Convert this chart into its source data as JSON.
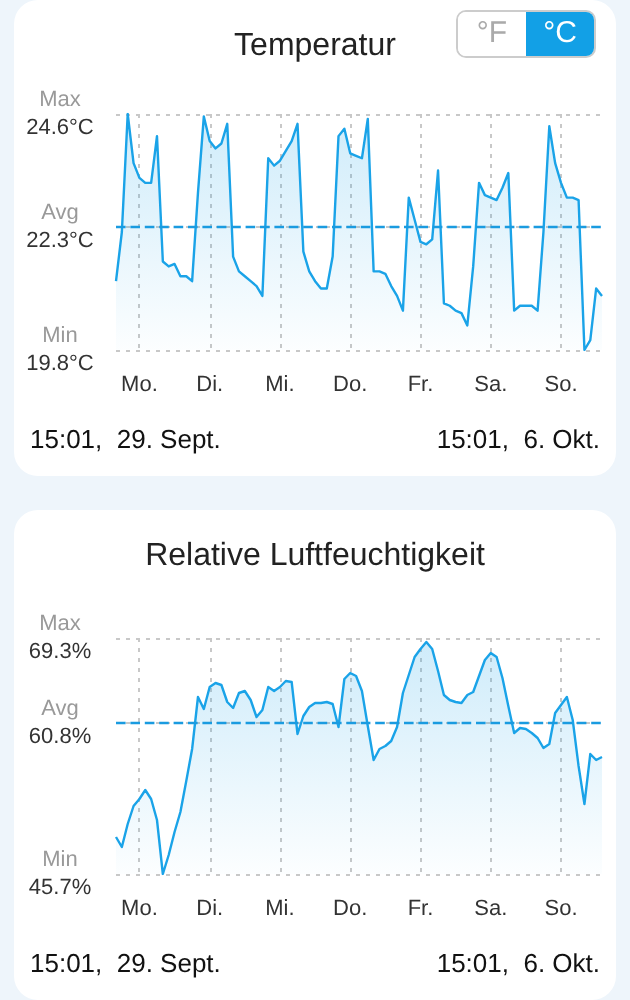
{
  "chart_data": [
    {
      "type": "area",
      "title": "Temperatur",
      "color": "#1aa3e8",
      "marker": "none",
      "grid": true,
      "annotations": [
        "°F",
        "°C",
        "Max",
        "Avg",
        "Min",
        "15:01,  29. Sept.",
        "15:01,  6. Okt."
      ],
      "categories": [
        null,
        null,
        null,
        null,
        "Mo.",
        null,
        null,
        null,
        null,
        null,
        null,
        null,
        null,
        null,
        null,
        null,
        "Di.",
        null,
        null,
        null,
        null,
        null,
        null,
        null,
        null,
        null,
        null,
        null,
        "Mi.",
        null,
        null,
        null,
        null,
        null,
        null,
        null,
        null,
        null,
        null,
        null,
        "Do.",
        null,
        null,
        null,
        null,
        null,
        null,
        null,
        null,
        null,
        null,
        null,
        "Fr.",
        null,
        null,
        null,
        null,
        null,
        null,
        null,
        null,
        null,
        null,
        null,
        "Sa.",
        null,
        null,
        null,
        null,
        null,
        null,
        null,
        null,
        null,
        null,
        null,
        "So.",
        null,
        null,
        null,
        null,
        null,
        null,
        null
      ],
      "ylim": [
        19.8,
        24.6
      ],
      "yticks": [
        {
          "value": 19.8,
          "label": "19.8°C"
        },
        {
          "value": 22.3,
          "label": "22.3°C"
        },
        {
          "value": 24.6,
          "label": "24.6°C"
        }
      ],
      "ref_lines": [
        {
          "axis": "y",
          "value": 22.3,
          "color": "#1a9be0",
          "line_style": "dashed"
        }
      ],
      "values": [
        21.2,
        22.2,
        24.6,
        23.6,
        23.3,
        23.2,
        23.2,
        24.15,
        21.6,
        21.5,
        21.55,
        21.3,
        21.3,
        21.2,
        23.0,
        24.55,
        24.05,
        23.9,
        24.0,
        24.4,
        21.7,
        21.4,
        21.3,
        21.2,
        21.1,
        20.9,
        23.7,
        23.55,
        23.65,
        23.85,
        24.05,
        24.4,
        21.8,
        21.4,
        21.2,
        21.05,
        21.05,
        21.7,
        24.15,
        24.3,
        23.8,
        23.75,
        23.7,
        24.5,
        21.4,
        21.4,
        21.35,
        21.1,
        20.9,
        20.6,
        22.9,
        22.45,
        22.0,
        21.95,
        22.05,
        23.45,
        20.75,
        20.7,
        20.6,
        20.55,
        20.3,
        21.5,
        23.2,
        22.95,
        22.9,
        22.85,
        23.1,
        23.4,
        20.6,
        20.7,
        20.7,
        20.7,
        20.6,
        22.2,
        24.35,
        23.6,
        23.2,
        22.9,
        22.9,
        22.85,
        19.8,
        20.0,
        21.05,
        20.9
      ]
    },
    {
      "type": "area",
      "title": "Relative Luftfeuchtigkeit",
      "color": "#1aa3e8",
      "marker": "none",
      "grid": true,
      "annotations": [
        "Max",
        "Avg",
        "Min",
        "15:01,  29. Sept.",
        "15:01,  6. Okt."
      ],
      "categories": [
        null,
        null,
        null,
        null,
        "Mo.",
        null,
        null,
        null,
        null,
        null,
        null,
        null,
        null,
        null,
        null,
        null,
        "Di.",
        null,
        null,
        null,
        null,
        null,
        null,
        null,
        null,
        null,
        null,
        null,
        "Mi.",
        null,
        null,
        null,
        null,
        null,
        null,
        null,
        null,
        null,
        null,
        null,
        "Do.",
        null,
        null,
        null,
        null,
        null,
        null,
        null,
        null,
        null,
        null,
        null,
        "Fr.",
        null,
        null,
        null,
        null,
        null,
        null,
        null,
        null,
        null,
        null,
        null,
        "Sa.",
        null,
        null,
        null,
        null,
        null,
        null,
        null,
        null,
        null,
        null,
        null,
        "So.",
        null,
        null,
        null,
        null,
        null,
        null,
        null
      ],
      "ylim": [
        45.7,
        69.3
      ],
      "yticks": [
        {
          "value": 45.7,
          "label": "45.7%"
        },
        {
          "value": 60.8,
          "label": "60.8%"
        },
        {
          "value": 69.3,
          "label": "69.3%"
        }
      ],
      "ref_lines": [
        {
          "axis": "y",
          "value": 60.8,
          "color": "#1a9be0",
          "line_style": "dashed"
        }
      ],
      "values": [
        49.4,
        48.4,
        50.7,
        52.5,
        53.2,
        54.1,
        53.2,
        51.1,
        45.7,
        47.6,
        49.9,
        51.9,
        55.0,
        58.2,
        63.4,
        62.2,
        64.4,
        64.8,
        64.6,
        62.9,
        62.3,
        63.8,
        64.0,
        63.1,
        61.4,
        62.1,
        64.4,
        64.0,
        64.4,
        65.0,
        64.9,
        59.7,
        61.5,
        62.4,
        62.8,
        62.8,
        62.9,
        62.7,
        60.4,
        65.2,
        65.8,
        65.5,
        64.0,
        60.5,
        57.1,
        58.2,
        58.5,
        59.0,
        60.4,
        63.8,
        65.6,
        67.4,
        68.2,
        68.9,
        68.2,
        66.0,
        63.6,
        63.1,
        62.9,
        62.8,
        63.6,
        63.9,
        65.5,
        67.1,
        67.8,
        67.4,
        65.3,
        62.5,
        59.8,
        60.3,
        60.2,
        59.8,
        59.3,
        58.3,
        58.7,
        61.8,
        62.6,
        63.4,
        61.1,
        56.5,
        52.7,
        57.7,
        57.1,
        57.4
      ]
    }
  ]
}
